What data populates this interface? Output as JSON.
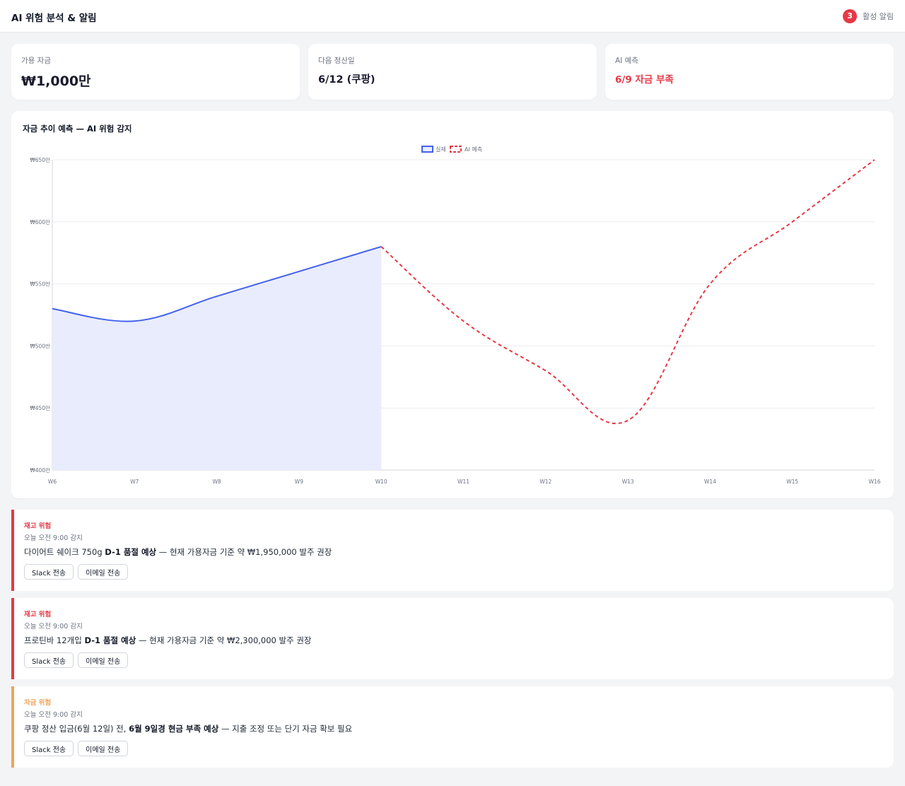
{
  "header": {
    "title": "AI 위험 분석 & 알림",
    "alert_count": "3",
    "alert_label": "활성 알림"
  },
  "stats": [
    {
      "label": "가용 자금",
      "value": "₩1,000만"
    },
    {
      "label": "다음 정산일",
      "value": "6/12 (쿠팡)"
    },
    {
      "label": "AI 예측",
      "value": "6/9 자금 부족"
    }
  ],
  "colors": {
    "actual": "#4361ee",
    "actual_fill": "#e9ecfc",
    "forecast": "#e63946",
    "warning": "#f4a259"
  },
  "chart_data": {
    "type": "line",
    "title": "자금 추이 예측 — AI 위험 감지",
    "categories": [
      "W6",
      "W7",
      "W8",
      "W9",
      "W10",
      "W11",
      "W12",
      "W13",
      "W14",
      "W15",
      "W16"
    ],
    "series": [
      {
        "name": "실제",
        "values": [
          530,
          520,
          540,
          560,
          580,
          null,
          null,
          null,
          null,
          null,
          null
        ],
        "style": "solid",
        "fill": true
      },
      {
        "name": "AI 예측",
        "values": [
          null,
          null,
          null,
          null,
          580,
          520,
          480,
          440,
          550,
          600,
          650
        ],
        "style": "dashed",
        "fill": false
      }
    ],
    "ylim": [
      400,
      650
    ],
    "yticks": [
      {
        "value": 650,
        "label": "₩650만"
      },
      {
        "value": 600,
        "label": "₩600만"
      },
      {
        "value": 550,
        "label": "₩550만"
      },
      {
        "value": 500,
        "label": "₩500만"
      },
      {
        "value": 450,
        "label": "₩450만"
      },
      {
        "value": 400,
        "label": "₩400만"
      }
    ],
    "grid": true,
    "legend": "top-center"
  },
  "alerts": [
    {
      "type": "재고 위험",
      "time": "오늘 오전 9:00 감지",
      "msg_pre": "다이어트 쉐이크 750g ",
      "msg_bold": "D-1 품절 예상",
      "msg_post": " — 현재 가용자금 기준 약 ₩1,950,000 발주 권장",
      "btn_slack": "Slack 전송",
      "btn_email": "이메일 전송"
    },
    {
      "type": "재고 위험",
      "time": "오늘 오전 9:00 감지",
      "msg_pre": "프로틴바 12개입 ",
      "msg_bold": "D-1 품절 예상",
      "msg_post": " — 현재 가용자금 기준 약 ₩2,300,000 발주 권장",
      "btn_slack": "Slack 전송",
      "btn_email": "이메일 전송"
    },
    {
      "type": "자금 위험",
      "time": "오늘 오전 9:00 감지",
      "msg_pre": "쿠팡 정산 입금(6월 12일) 전, ",
      "msg_bold": "6월 9일경 현금 부족 예상",
      "msg_post": " — 지출 조정 또는 단기 자금 확보 필요",
      "btn_slack": "Slack 전송",
      "btn_email": "이메일 전송"
    }
  ]
}
